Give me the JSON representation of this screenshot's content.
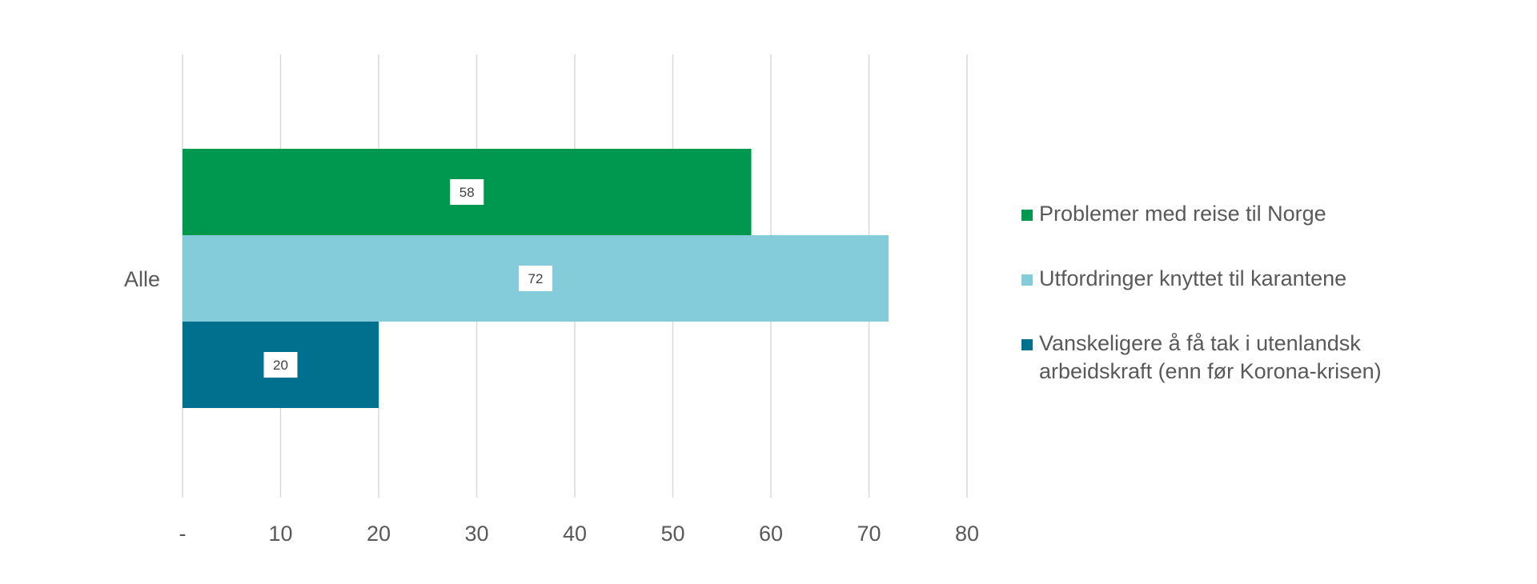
{
  "chart_data": {
    "type": "bar",
    "orientation": "horizontal",
    "categories": [
      "Alle"
    ],
    "series": [
      {
        "name": "Problemer med reise til Norge",
        "values": [
          58
        ],
        "color": "#00984f"
      },
      {
        "name": "Utfordringer knyttet til karantene",
        "values": [
          72
        ],
        "color": "#84ccd9"
      },
      {
        "name": "Vanskeligere å få tak i utenlandsk arbeidskraft (enn før Korona-krisen)",
        "values": [
          20
        ],
        "color": "#00708f"
      }
    ],
    "xlim": [
      0,
      80
    ],
    "x_ticks": [
      0,
      10,
      20,
      30,
      40,
      50,
      60,
      70,
      80
    ],
    "x_tick_labels": [
      "-",
      "10",
      "20",
      "30",
      "40",
      "50",
      "60",
      "70",
      "80"
    ],
    "grid": "vertical",
    "legend_position": "right",
    "data_labels": true
  },
  "legend": {
    "items": [
      "Problemer med reise til Norge",
      "Utfordringer knyttet til karantene",
      "Vanskeligere å få tak i utenlandsk arbeidskraft (enn før Korona-krisen)"
    ]
  }
}
